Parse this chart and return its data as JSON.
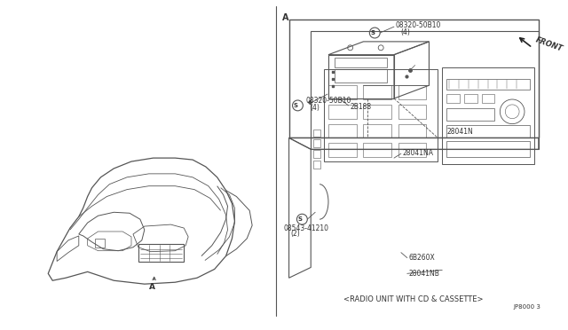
{
  "bg_color": "#ffffff",
  "line_color": "#555555",
  "fig_width": 6.4,
  "fig_height": 3.72,
  "dpi": 100,
  "labels": {
    "A_left": "A",
    "A_right": "A",
    "front": "FRONT",
    "part1": "08320-50B10",
    "part1_qty": "(4)",
    "part2": "08320-50B10",
    "part2_qty": "(4)",
    "part3": "2B188",
    "part4": "28041N",
    "part5": "28041NA",
    "part6": "08543-41210",
    "part6_qty": "(2)",
    "part7": "6B260X",
    "part8": "28041NB",
    "caption": "<RADIO UNIT WITH CD & CASSETTE>",
    "ref_code": "JP8000 3"
  }
}
